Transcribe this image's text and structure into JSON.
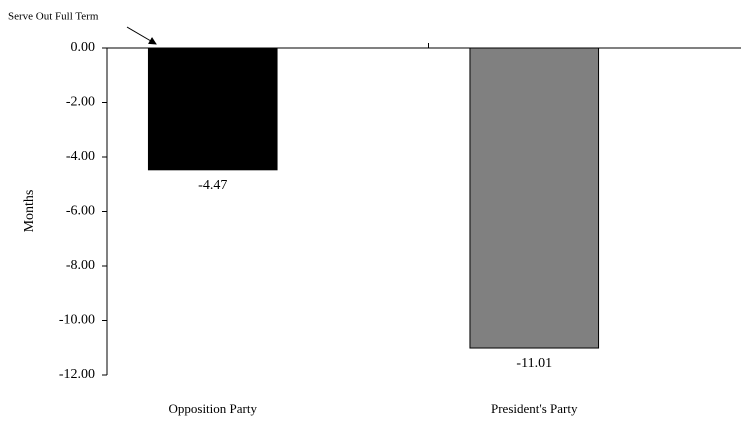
{
  "chart_data": {
    "type": "bar",
    "annotation": "Serve Out Full Term",
    "ylabel": "Months",
    "categories": [
      "Opposition Party",
      "President's Party"
    ],
    "values": [
      -4.47,
      -11.01
    ],
    "colors": [
      "#000000",
      "#808080"
    ],
    "ylim": [
      -12,
      0
    ],
    "yticks": [
      {
        "value": 0,
        "label": "0.00"
      },
      {
        "value": -2,
        "label": "-2.00"
      },
      {
        "value": -4,
        "label": "-4.00"
      },
      {
        "value": -6,
        "label": "-6.00"
      },
      {
        "value": -8,
        "label": "-8.00"
      },
      {
        "value": -10,
        "label": "-10.00"
      },
      {
        "value": -12,
        "label": "-12.00"
      }
    ]
  }
}
